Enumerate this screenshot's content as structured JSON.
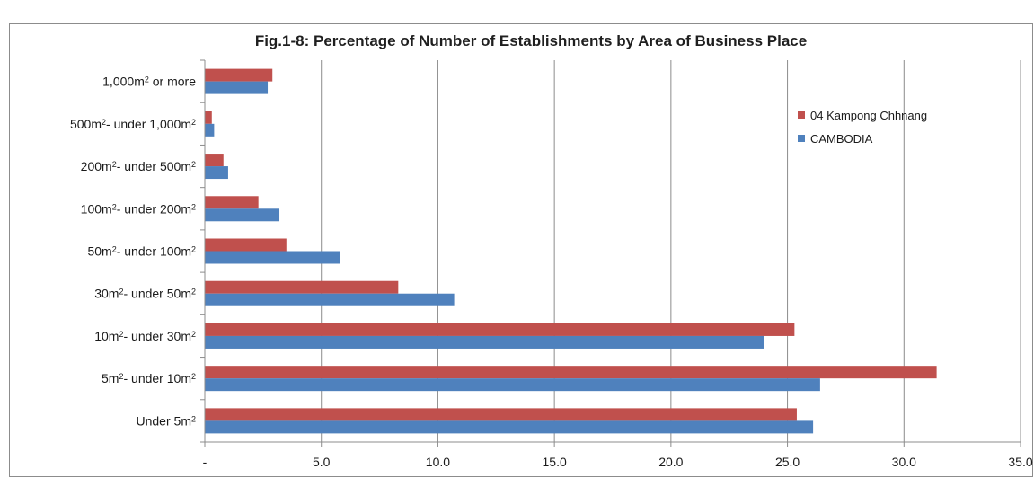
{
  "chart_data": {
    "type": "bar",
    "orientation": "horizontal",
    "title": "Fig.1-8: Percentage of Number of Establishments by Area of Business Place",
    "xlabel": "",
    "ylabel": "",
    "xlim": [
      0,
      35
    ],
    "x_ticks": [
      "-",
      "5.0",
      "10.0",
      "15.0",
      "20.0",
      "25.0",
      "30.0",
      "35.0"
    ],
    "grid": "vertical",
    "legend_position": "top-right",
    "categories": [
      {
        "before": "1,000",
        "unit": "m",
        "sup": "2",
        "mid": " or more",
        "unit2": "",
        "sup2": ""
      },
      {
        "before": "500",
        "unit": "m",
        "sup": "2",
        "mid": "- under 1,000",
        "unit2": "m",
        "sup2": "2"
      },
      {
        "before": "200",
        "unit": "m",
        "sup": "2",
        "mid": "- under 500",
        "unit2": "m",
        "sup2": "2"
      },
      {
        "before": "100",
        "unit": "m",
        "sup": "2",
        "mid": "- under 200",
        "unit2": "m",
        "sup2": "2"
      },
      {
        "before": "50",
        "unit": "m",
        "sup": "2",
        "mid": "- under 100",
        "unit2": "m",
        "sup2": "2"
      },
      {
        "before": "30",
        "unit": "m",
        "sup": "2",
        "mid": "- under 50",
        "unit2": "m",
        "sup2": "2"
      },
      {
        "before": "10",
        "unit": "m",
        "sup": "2",
        "mid": "- under 30",
        "unit2": "m",
        "sup2": "2"
      },
      {
        "before": "5",
        "unit": "m",
        "sup": "2",
        "mid": "- under 10",
        "unit2": "m",
        "sup2": "2"
      },
      {
        "before": "Under 5",
        "unit": "m",
        "sup": "2",
        "mid": "",
        "unit2": "",
        "sup2": ""
      }
    ],
    "series": [
      {
        "name": "04 Kampong Chhnang",
        "color": "#c0504d",
        "values": [
          2.9,
          0.3,
          0.8,
          2.3,
          3.5,
          8.3,
          25.3,
          31.4,
          25.4
        ]
      },
      {
        "name": "CAMBODIA",
        "color": "#4f81bd",
        "values": [
          2.7,
          0.4,
          1.0,
          3.2,
          5.8,
          10.7,
          24.0,
          26.4,
          26.1
        ]
      }
    ]
  }
}
